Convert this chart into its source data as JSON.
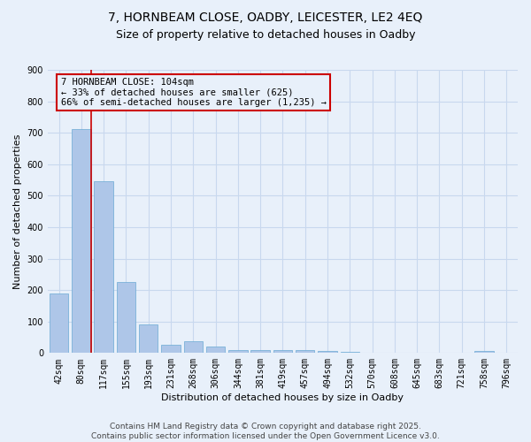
{
  "title_line1": "7, HORNBEAM CLOSE, OADBY, LEICESTER, LE2 4EQ",
  "title_line2": "Size of property relative to detached houses in Oadby",
  "xlabel": "Distribution of detached houses by size in Oadby",
  "ylabel": "Number of detached properties",
  "categories": [
    "42sqm",
    "80sqm",
    "117sqm",
    "155sqm",
    "193sqm",
    "231sqm",
    "268sqm",
    "306sqm",
    "344sqm",
    "381sqm",
    "419sqm",
    "457sqm",
    "494sqm",
    "532sqm",
    "570sqm",
    "608sqm",
    "645sqm",
    "683sqm",
    "721sqm",
    "758sqm",
    "796sqm"
  ],
  "values": [
    190,
    713,
    547,
    225,
    90,
    25,
    37,
    22,
    10,
    10,
    10,
    8,
    7,
    5,
    0,
    0,
    0,
    0,
    0,
    7,
    0
  ],
  "bar_color": "#aec6e8",
  "bar_edge_color": "#6aaad4",
  "grid_color": "#c8d8ee",
  "background_color": "#e8f0fa",
  "annotation_box_color": "#cc0000",
  "annotation_text_line1": "7 HORNBEAM CLOSE: 104sqm",
  "annotation_text_line2": "← 33% of detached houses are smaller (625)",
  "annotation_text_line3": "66% of semi-detached houses are larger (1,235) →",
  "vline_color": "#cc0000",
  "ylim": [
    0,
    900
  ],
  "yticks": [
    0,
    100,
    200,
    300,
    400,
    500,
    600,
    700,
    800,
    900
  ],
  "footer_line1": "Contains HM Land Registry data © Crown copyright and database right 2025.",
  "footer_line2": "Contains public sector information licensed under the Open Government Licence v3.0.",
  "title_fontsize": 10,
  "subtitle_fontsize": 9,
  "axis_label_fontsize": 8,
  "tick_fontsize": 7,
  "annotation_fontsize": 7.5,
  "footer_fontsize": 6.5
}
